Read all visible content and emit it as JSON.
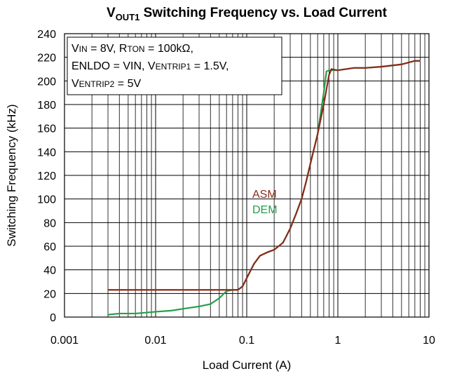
{
  "chart_data": {
    "type": "line",
    "title": [
      "V",
      "OUT1",
      " Switching Frequency vs. Load Current"
    ],
    "x_label": "Load Current (A)",
    "y_label": "Switching Frequency (kHz)",
    "annotation": [
      [
        "V",
        "IN",
        " = 8V, R",
        "TON",
        " = 100kΩ,"
      ],
      [
        "ENLDO = VIN, V",
        "ENTRIP1",
        " = 1.5V,"
      ],
      [
        "V",
        "ENTRIP2",
        " = 5V"
      ]
    ],
    "xscale": "log",
    "xlim": [
      0.001,
      10
    ],
    "xticks": [
      0.001,
      0.01,
      0.1,
      1,
      10
    ],
    "xminorticks": [
      0.002,
      0.003,
      0.004,
      0.005,
      0.006,
      0.007,
      0.008,
      0.009,
      0.02,
      0.03,
      0.04,
      0.05,
      0.06,
      0.07,
      0.08,
      0.09,
      0.2,
      0.3,
      0.4,
      0.5,
      0.6,
      0.7,
      0.8,
      0.9,
      2,
      3,
      4,
      5,
      6,
      7,
      8,
      9
    ],
    "ylim": [
      0,
      240
    ],
    "yticks": [
      0,
      20,
      40,
      60,
      80,
      100,
      120,
      140,
      160,
      180,
      200,
      220,
      240
    ],
    "grid": true,
    "series": [
      {
        "name": "ASM",
        "color": "#8b2a1a",
        "x": [
          0.003,
          0.08,
          0.09,
          0.1,
          0.12,
          0.14,
          0.17,
          0.2,
          0.25,
          0.3,
          0.35,
          0.4,
          0.45,
          0.5,
          0.6,
          0.7,
          0.8,
          0.85,
          1,
          1.5,
          2,
          3,
          5,
          7,
          8
        ],
        "values": [
          23,
          23,
          26,
          33,
          45,
          52,
          55,
          57,
          63,
          75,
          88,
          100,
          115,
          130,
          155,
          180,
          205,
          210,
          209,
          211,
          211,
          212,
          214,
          217,
          217
        ]
      },
      {
        "name": "DEM",
        "color": "#22a04a",
        "x": [
          0.003,
          0.004,
          0.006,
          0.01,
          0.015,
          0.02,
          0.03,
          0.04,
          0.05,
          0.06,
          0.07,
          0.08,
          0.09,
          0.1,
          0.12,
          0.14,
          0.17,
          0.2,
          0.25,
          0.3,
          0.35,
          0.4,
          0.45,
          0.5,
          0.6,
          0.7,
          0.75,
          0.8,
          0.9,
          1,
          1.5,
          2,
          3,
          5,
          7,
          8
        ],
        "values": [
          2,
          3,
          3,
          4.5,
          5.5,
          7,
          9,
          11,
          16,
          22,
          23,
          23,
          26,
          33,
          45,
          52,
          55,
          57,
          63,
          75,
          88,
          100,
          115,
          130,
          155,
          190,
          208,
          209,
          209,
          209,
          211,
          211,
          212,
          214,
          217,
          217
        ]
      }
    ]
  }
}
